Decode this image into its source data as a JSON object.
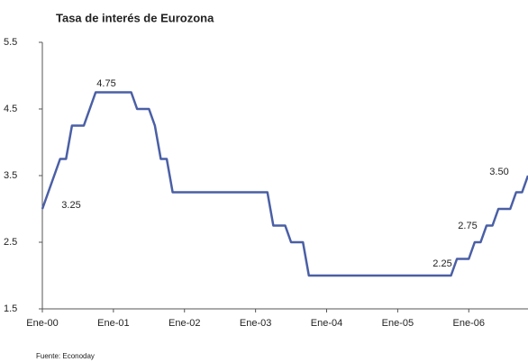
{
  "chart_data": {
    "type": "line",
    "title": "Tasa de interés de Eurozona",
    "source": "Fuente: Econoday",
    "categories": [
      "Ene-00",
      null,
      null,
      null,
      null,
      null,
      null,
      null,
      null,
      null,
      null,
      null,
      "Ene-01",
      null,
      null,
      null,
      null,
      null,
      null,
      null,
      null,
      null,
      null,
      null,
      "Ene-02",
      null,
      null,
      null,
      null,
      null,
      null,
      null,
      null,
      null,
      null,
      null,
      "Ene-03",
      null,
      null,
      null,
      null,
      null,
      null,
      null,
      null,
      null,
      null,
      null,
      "Ene-04",
      null,
      null,
      null,
      null,
      null,
      null,
      null,
      null,
      null,
      null,
      null,
      "Ene-05",
      null,
      null,
      null,
      null,
      null,
      null,
      null,
      null,
      null,
      null,
      null,
      "Ene-06",
      null,
      null,
      null,
      null,
      null,
      null,
      null,
      null,
      null,
      null
    ],
    "series": [
      {
        "name": "Tasa",
        "color": "#4a5fa5",
        "values": [
          3.0,
          3.25,
          3.5,
          3.75,
          3.75,
          4.25,
          4.25,
          4.25,
          4.5,
          4.75,
          4.75,
          4.75,
          4.75,
          4.75,
          4.75,
          4.75,
          4.5,
          4.5,
          4.5,
          4.25,
          3.75,
          3.75,
          3.25,
          3.25,
          3.25,
          3.25,
          3.25,
          3.25,
          3.25,
          3.25,
          3.25,
          3.25,
          3.25,
          3.25,
          3.25,
          3.25,
          3.25,
          3.25,
          3.25,
          2.75,
          2.75,
          2.75,
          2.5,
          2.5,
          2.5,
          2.0,
          2.0,
          2.0,
          2.0,
          2.0,
          2.0,
          2.0,
          2.0,
          2.0,
          2.0,
          2.0,
          2.0,
          2.0,
          2.0,
          2.0,
          2.0,
          2.0,
          2.0,
          2.0,
          2.0,
          2.0,
          2.0,
          2.0,
          2.0,
          2.0,
          2.25,
          2.25,
          2.25,
          2.5,
          2.5,
          2.75,
          2.75,
          3.0,
          3.0,
          3.0,
          3.25,
          3.25,
          3.5
        ]
      }
    ],
    "annotations": [
      "4.75",
      "3.25",
      "2.25",
      "2.75",
      "3.50"
    ],
    "ylim": [
      1.5,
      5.5
    ],
    "yticks": [
      1.5,
      2.5,
      3.5,
      4.5,
      5.5
    ],
    "grid": false
  }
}
